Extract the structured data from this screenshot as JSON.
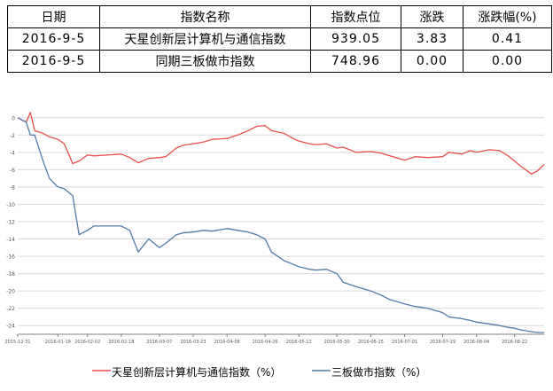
{
  "table": {
    "headers": [
      "日期",
      "指数名称",
      "指数点位",
      "涨跌",
      "涨跌幅(%)"
    ],
    "rows": [
      [
        "2016-9-5",
        "天星创新层计算机与通信指数",
        "939.05",
        "3.83",
        "0.41"
      ],
      [
        "2016-9-5",
        "同期三板做市指数",
        "748.96",
        "0.00",
        "0.00"
      ]
    ]
  },
  "legend": {
    "series1": "天星创新层计算机与通信指数（%）",
    "series2": "三板做市指数（%）"
  },
  "colors": {
    "series1": "#e8504c",
    "series2": "#5279a6",
    "grid": "#d9d9d9",
    "axis": "#7f7f7f"
  },
  "chart_data": {
    "type": "line",
    "ylim": [
      -25,
      1
    ],
    "yticks": [
      0,
      -2,
      -4,
      -6,
      -8,
      -10,
      -12,
      -14,
      -16,
      -18,
      -20,
      -22,
      -24
    ],
    "xticks": [
      "2015-12-31",
      "2016-01-19",
      "2016-02-02",
      "2016-02-18",
      "2016-03-07",
      "2016-03-23",
      "2016-04-08",
      "2016-04-26",
      "2016-05-12",
      "2016-05-30",
      "2016-06-15",
      "2016-07-01",
      "2016-07-19",
      "2016-08-04",
      "2016-08-22"
    ],
    "x": [
      "2015-12-31",
      "2016-01-04",
      "2016-01-06",
      "2016-01-08",
      "2016-01-12",
      "2016-01-15",
      "2016-01-19",
      "2016-01-22",
      "2016-01-26",
      "2016-01-29",
      "2016-02-02",
      "2016-02-05",
      "2016-02-18",
      "2016-02-22",
      "2016-02-26",
      "2016-03-02",
      "2016-03-07",
      "2016-03-10",
      "2016-03-15",
      "2016-03-18",
      "2016-03-23",
      "2016-03-28",
      "2016-04-01",
      "2016-04-08",
      "2016-04-13",
      "2016-04-18",
      "2016-04-22",
      "2016-04-26",
      "2016-04-29",
      "2016-05-05",
      "2016-05-10",
      "2016-05-12",
      "2016-05-17",
      "2016-05-20",
      "2016-05-25",
      "2016-05-30",
      "2016-06-02",
      "2016-06-08",
      "2016-06-15",
      "2016-06-20",
      "2016-06-24",
      "2016-07-01",
      "2016-07-06",
      "2016-07-12",
      "2016-07-19",
      "2016-07-22",
      "2016-07-28",
      "2016-08-01",
      "2016-08-04",
      "2016-08-10",
      "2016-08-15",
      "2016-08-19",
      "2016-08-22",
      "2016-08-25",
      "2016-08-30",
      "2016-09-02",
      "2016-09-05"
    ],
    "series": [
      {
        "name": "天星创新层计算机与通信指数（%）",
        "values": [
          0,
          -0.5,
          0.6,
          -1.5,
          -1.8,
          -2.2,
          -2.5,
          -3.0,
          -5.3,
          -5.0,
          -4.3,
          -4.4,
          -4.2,
          -4.6,
          -5.2,
          -4.7,
          -4.6,
          -4.5,
          -3.5,
          -3.2,
          -3.0,
          -2.8,
          -2.5,
          -2.4,
          -2.0,
          -1.5,
          -1.0,
          -0.9,
          -1.5,
          -1.8,
          -2.5,
          -2.7,
          -3.0,
          -3.1,
          -3.0,
          -3.5,
          -3.4,
          -4.0,
          -3.9,
          -4.1,
          -4.4,
          -4.9,
          -4.5,
          -4.6,
          -4.5,
          -4.0,
          -4.2,
          -3.8,
          -4.0,
          -3.7,
          -3.8,
          -4.4,
          -5.0,
          -5.6,
          -6.5,
          -6.1,
          -5.4
        ]
      },
      {
        "name": "三板做市指数（%）",
        "values": [
          0,
          -0.5,
          -2.0,
          -2.0,
          -5.0,
          -7.0,
          -8.0,
          -8.2,
          -9.0,
          -13.5,
          -13.0,
          -12.5,
          -12.5,
          -13.0,
          -15.5,
          -14.0,
          -15.0,
          -14.5,
          -13.5,
          -13.3,
          -13.2,
          -13.0,
          -13.1,
          -12.8,
          -13.0,
          -13.2,
          -13.5,
          -14.0,
          -15.5,
          -16.5,
          -17.0,
          -17.2,
          -17.5,
          -17.6,
          -17.5,
          -18.0,
          -19.0,
          -19.5,
          -20.0,
          -20.5,
          -21.0,
          -21.5,
          -21.8,
          -22.0,
          -22.5,
          -23.0,
          -23.2,
          -23.4,
          -23.6,
          -23.8,
          -24.0,
          -24.2,
          -24.3,
          -24.5,
          -24.7,
          -24.8,
          -24.8
        ]
      }
    ]
  }
}
